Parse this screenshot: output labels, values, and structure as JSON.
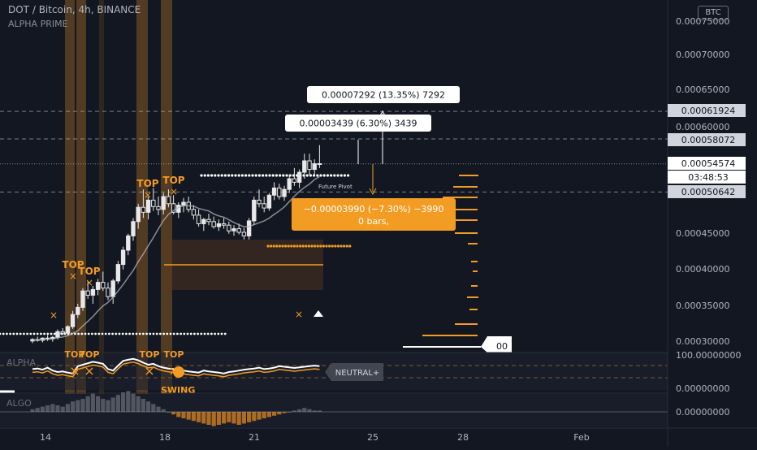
{
  "header": {
    "title": "DOT / Bitcoin, 4h, BINANCE",
    "indicator": "ALPHA PRIME",
    "currency": "BTC"
  },
  "colors": {
    "background": "#131722",
    "accent": "#f39c23",
    "candle": "#e8e8e8",
    "price_line": "#b2b5be"
  },
  "chart_data": {
    "type": "candlestick",
    "x_tick_labels": [
      "14",
      "18",
      "21",
      "25",
      "28",
      "Feb"
    ],
    "y_tick_labels": [
      "0.00075000",
      "0.00070000",
      "0.00065000",
      "0.00060000",
      "0.00045000",
      "0.00040000",
      "0.00035000",
      "0.00030000"
    ],
    "y_range": [
      0.00028,
      0.00077
    ],
    "last_price": "0.00054574",
    "countdown": "03:48:53",
    "level_labels": [
      "0.00061924",
      "0.00058072",
      "0.00050642"
    ],
    "ohlc": [
      [
        0.000298,
        0.000302,
        0.000295,
        0.0003
      ],
      [
        0.0003,
        0.000304,
        0.000297,
        0.000299
      ],
      [
        0.000299,
        0.000303,
        0.000296,
        0.000302
      ],
      [
        0.000302,
        0.000306,
        0.000298,
        0.000301
      ],
      [
        0.000301,
        0.000305,
        0.000297,
        0.000303
      ],
      [
        0.000303,
        0.000314,
        0.0003,
        0.000311
      ],
      [
        0.000311,
        0.000316,
        0.000306,
        0.000309
      ],
      [
        0.000309,
        0.00032,
        0.000306,
        0.000318
      ],
      [
        0.000318,
        0.00034,
        0.000315,
        0.000335
      ],
      [
        0.000335,
        0.00035,
        0.00033,
        0.000345
      ],
      [
        0.000345,
        0.000372,
        0.00034,
        0.000368
      ],
      [
        0.000368,
        0.000382,
        0.000357,
        0.000362
      ],
      [
        0.000362,
        0.000375,
        0.00035,
        0.00037
      ],
      [
        0.00037,
        0.000385,
        0.000362,
        0.00038
      ],
      [
        0.00038,
        0.000395,
        0.000368,
        0.000372
      ],
      [
        0.000372,
        0.00038,
        0.000355,
        0.00036
      ],
      [
        0.00036,
        0.000385,
        0.00035,
        0.000382
      ],
      [
        0.000382,
        0.00041,
        0.000378,
        0.000405
      ],
      [
        0.000405,
        0.00043,
        0.000398,
        0.000425
      ],
      [
        0.000425,
        0.000448,
        0.000418,
        0.000445
      ],
      [
        0.000445,
        0.00047,
        0.000438,
        0.000465
      ],
      [
        0.000465,
        0.00049,
        0.000455,
        0.000485
      ],
      [
        0.000485,
        0.00051,
        0.00047,
        0.000478
      ],
      [
        0.000478,
        0.0005,
        0.000468,
        0.000495
      ],
      [
        0.000495,
        0.000512,
        0.00048,
        0.000486
      ],
      [
        0.000486,
        0.0005,
        0.000474,
        0.000482
      ],
      [
        0.000482,
        0.000505,
        0.000475,
        0.0005
      ],
      [
        0.0005,
        0.00051,
        0.000485,
        0.00049
      ],
      [
        0.00049,
        0.000502,
        0.000475,
        0.000478
      ],
      [
        0.000478,
        0.000492,
        0.00047,
        0.000488
      ],
      [
        0.000488,
        0.000498,
        0.000478,
        0.000492
      ],
      [
        0.000492,
        0.0005,
        0.000478,
        0.000482
      ],
      [
        0.000482,
        0.000488,
        0.000468,
        0.000474
      ],
      [
        0.000474,
        0.000482,
        0.000458,
        0.000462
      ],
      [
        0.000462,
        0.00047,
        0.000452,
        0.000468
      ],
      [
        0.000468,
        0.000476,
        0.00046,
        0.000465
      ],
      [
        0.000465,
        0.000472,
        0.000455,
        0.000458
      ],
      [
        0.000458,
        0.000468,
        0.000452,
        0.000462
      ],
      [
        0.000462,
        0.00047,
        0.000455,
        0.00046
      ],
      [
        0.00046,
        0.000465,
        0.000448,
        0.000452
      ],
      [
        0.000452,
        0.00046,
        0.000445,
        0.000455
      ],
      [
        0.000455,
        0.000462,
        0.000447,
        0.00045
      ],
      [
        0.00045,
        0.000456,
        0.00044,
        0.000445
      ],
      [
        0.000445,
        0.00047,
        0.00044,
        0.000466
      ],
      [
        0.000466,
        0.0005,
        0.00046,
        0.000495
      ],
      [
        0.000495,
        0.00051,
        0.000485,
        0.00049
      ],
      [
        0.00049,
        0.0005,
        0.000478,
        0.000484
      ],
      [
        0.000484,
        0.000505,
        0.00048,
        0.000502
      ],
      [
        0.000502,
        0.00052,
        0.000495,
        0.000512
      ],
      [
        0.000512,
        0.000518,
        0.000496,
        0.0005
      ],
      [
        0.0005,
        0.000515,
        0.000494,
        0.00051
      ],
      [
        0.00051,
        0.00053,
        0.000505,
        0.000525
      ],
      [
        0.000525,
        0.00054,
        0.000515,
        0.00052
      ],
      [
        0.00052,
        0.000538,
        0.000512,
        0.000534
      ],
      [
        0.000534,
        0.00056,
        0.000525,
        0.00055
      ],
      [
        0.00055,
        0.00056,
        0.00053,
        0.000538
      ],
      [
        0.000538,
        0.000552,
        0.000528,
        0.000546
      ],
      [
        0.000546,
        0.000572,
        0.00054,
        0.000545
      ]
    ],
    "annotations": {
      "top_label": "TOP",
      "swing_label": "SWING",
      "future_pivot_label": "Future Pivot",
      "measure_up_1": "0.00003439 (6.30%) 3439",
      "measure_up_2": "0.00007292 (13.35%) 7292",
      "measure_down_line1": "−0.00003990 (−7.30%) −3990",
      "measure_down_line2": "0 bars,",
      "right_marker": "00"
    },
    "oscillator": {
      "name": "ALPHA",
      "top_value": "100.00000000",
      "bottom_value": "0.00000000",
      "state_label": "NEUTRAL+",
      "series": [
        60,
        62,
        58,
        65,
        55,
        50,
        52,
        48,
        45,
        70,
        75,
        80,
        85,
        82,
        78,
        60,
        55,
        72,
        88,
        92,
        95,
        90,
        82,
        75,
        78,
        70,
        65,
        62,
        60,
        58,
        55,
        52,
        50,
        48,
        55,
        52,
        50,
        48,
        45,
        50,
        52,
        55,
        58,
        60,
        62,
        65,
        60,
        62,
        65,
        70,
        68,
        66,
        64,
        66,
        68,
        70,
        72,
        70
      ]
    },
    "histogram": {
      "name": "ALGO",
      "zero_value": "0.00000000",
      "values": [
        2,
        3,
        4,
        5,
        6,
        5,
        4,
        6,
        8,
        9,
        10,
        12,
        14,
        12,
        10,
        9,
        11,
        13,
        15,
        16,
        14,
        12,
        10,
        8,
        6,
        4,
        2,
        0,
        -2,
        -4,
        -5,
        -6,
        -7,
        -8,
        -9,
        -10,
        -11,
        -10,
        -9,
        -8,
        -9,
        -10,
        -9,
        -8,
        -7,
        -6,
        -5,
        -4,
        -3,
        -2,
        -1,
        0,
        1,
        2,
        3,
        2,
        1,
        1
      ]
    }
  }
}
